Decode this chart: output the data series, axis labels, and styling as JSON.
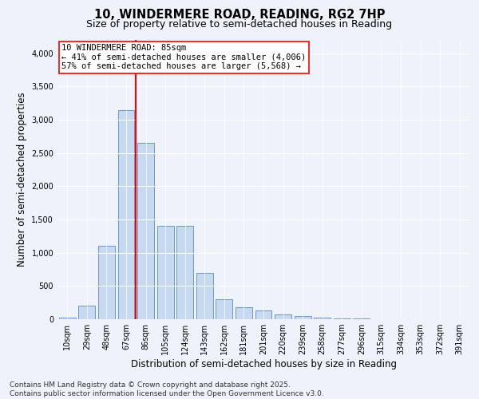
{
  "title_line1": "10, WINDERMERE ROAD, READING, RG2 7HP",
  "title_line2": "Size of property relative to semi-detached houses in Reading",
  "xlabel": "Distribution of semi-detached houses by size in Reading",
  "ylabel": "Number of semi-detached properties",
  "categories": [
    "10sqm",
    "29sqm",
    "48sqm",
    "67sqm",
    "86sqm",
    "105sqm",
    "124sqm",
    "143sqm",
    "162sqm",
    "181sqm",
    "201sqm",
    "220sqm",
    "239sqm",
    "258sqm",
    "277sqm",
    "296sqm",
    "315sqm",
    "334sqm",
    "353sqm",
    "372sqm",
    "391sqm"
  ],
  "values": [
    20,
    200,
    1100,
    3150,
    2650,
    1400,
    1400,
    700,
    300,
    175,
    130,
    75,
    50,
    30,
    15,
    10,
    5,
    3,
    2,
    0,
    0
  ],
  "bar_color": "#c6d9f1",
  "bar_edge_color": "#6899cc",
  "vline_color": "red",
  "annotation_line1": "10 WINDERMERE ROAD: 85sqm",
  "annotation_line2": "← 41% of semi-detached houses are smaller (4,006)",
  "annotation_line3": "57% of semi-detached houses are larger (5,568) →",
  "annotation_box_color": "white",
  "annotation_box_edge_color": "red",
  "ylim": [
    0,
    4200
  ],
  "yticks": [
    0,
    500,
    1000,
    1500,
    2000,
    2500,
    3000,
    3500,
    4000
  ],
  "footer_line1": "Contains HM Land Registry data © Crown copyright and database right 2025.",
  "footer_line2": "Contains public sector information licensed under the Open Government Licence v3.0.",
  "background_color": "#eef2fa",
  "plot_background_color": "#eef2fa",
  "title_fontsize": 10.5,
  "subtitle_fontsize": 9,
  "axis_label_fontsize": 8.5,
  "tick_fontsize": 7,
  "annotation_fontsize": 7.5,
  "footer_fontsize": 6.5,
  "vline_bar_index": 3.5
}
